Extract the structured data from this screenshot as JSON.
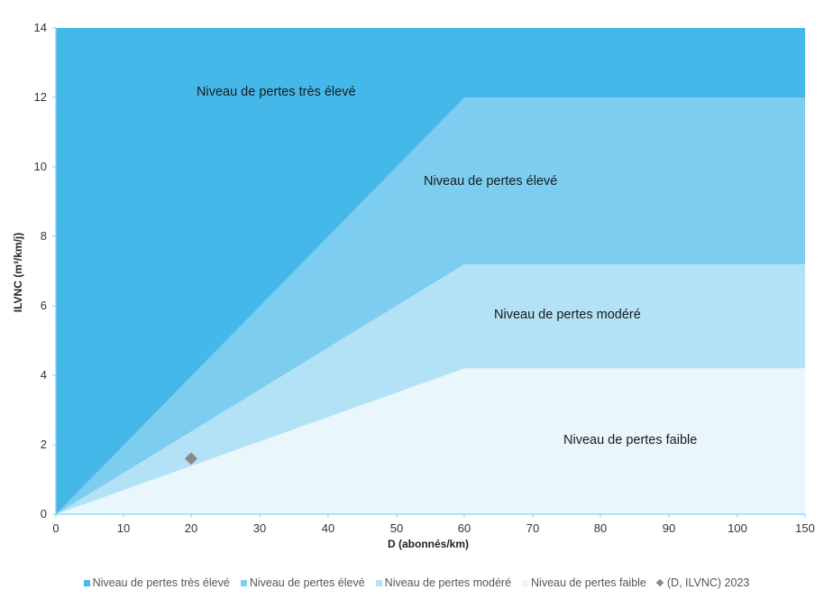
{
  "chart_data": {
    "type": "area",
    "title": "",
    "xlabel": "D (abonnés/km)",
    "ylabel": "ILVNC (m³/km/j)",
    "x_ticks": [
      "0",
      "10",
      "20",
      "30",
      "40",
      "50",
      "60",
      "70",
      "80",
      "90",
      "100",
      "150"
    ],
    "y_ticks": [
      "0",
      "2",
      "4",
      "6",
      "8",
      "10",
      "12",
      "14"
    ],
    "ylim": [
      0,
      14
    ],
    "grid": false,
    "legend_position": "bottom",
    "series": [
      {
        "name": "Niveau de pertes très élevé",
        "color": "#45b8ea",
        "label": "Niveau de pertes très élevé",
        "x": [
          0,
          150
        ],
        "y": [
          14,
          14
        ]
      },
      {
        "name": "Niveau de pertes élevé",
        "color": "#7ccdf0",
        "label": "Niveau de pertes élevé",
        "x": [
          0,
          60,
          150
        ],
        "y": [
          0,
          12,
          12
        ]
      },
      {
        "name": "Niveau de pertes modéré",
        "color": "#b3e1f6",
        "label": "Niveau de pertes modéré",
        "x": [
          0,
          60,
          150
        ],
        "y": [
          0,
          7.2,
          7.2
        ]
      },
      {
        "name": "Niveau de pertes faible",
        "color": "#e9f6fc",
        "label": "Niveau de pertes faible",
        "x": [
          0,
          60,
          150
        ],
        "y": [
          0,
          4.2,
          4.2
        ]
      }
    ],
    "points": [
      {
        "name": "(D, ILVNC) 2023",
        "x": 20,
        "y": 1.6,
        "color": "#888888",
        "marker": "diamond"
      }
    ]
  }
}
